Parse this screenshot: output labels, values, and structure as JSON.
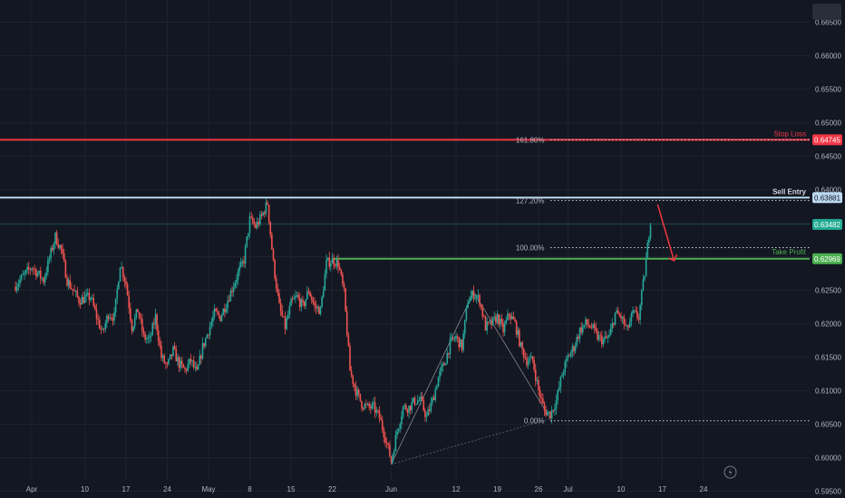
{
  "chart_data": {
    "type": "candlestick",
    "symbol_context": "FX pair price chart",
    "title": "",
    "xlabel": "",
    "ylabel": "",
    "ylim": [
      0.59418,
      0.66818
    ],
    "y_ticks": [
      "0.66500",
      "0.66000",
      "0.65500",
      "0.65000",
      "0.64500",
      "0.64000",
      "0.63500",
      "0.63000",
      "0.62500",
      "0.62000",
      "0.61500",
      "0.61000",
      "0.60500",
      "0.60000",
      "0.59500"
    ],
    "x_ticks": [
      {
        "label": "Apr",
        "day": 0
      },
      {
        "label": "10",
        "day": 9
      },
      {
        "label": "17",
        "day": 16
      },
      {
        "label": "24",
        "day": 23
      },
      {
        "label": "May",
        "day": 30
      },
      {
        "label": "8",
        "day": 37
      },
      {
        "label": "15",
        "day": 44
      },
      {
        "label": "22",
        "day": 51
      },
      {
        "label": "Jun",
        "day": 61
      },
      {
        "label": "12",
        "day": 72
      },
      {
        "label": "19",
        "day": 79
      },
      {
        "label": "26",
        "day": 86
      },
      {
        "label": "Jul",
        "day": 91
      },
      {
        "label": "10",
        "day": 100
      },
      {
        "label": "17",
        "day": 107
      },
      {
        "label": "24",
        "day": 114
      }
    ],
    "x_range_days": [
      -3,
      117.5
    ],
    "series_path": [
      [
        -3,
        0.6255
      ],
      [
        0,
        0.6285
      ],
      [
        2,
        0.6265
      ],
      [
        4,
        0.633
      ],
      [
        5,
        0.631
      ],
      [
        6,
        0.6265
      ],
      [
        8,
        0.6235
      ],
      [
        10,
        0.624
      ],
      [
        11,
        0.621
      ],
      [
        12,
        0.6185
      ],
      [
        13,
        0.6215
      ],
      [
        14,
        0.621
      ],
      [
        15,
        0.629
      ],
      [
        16,
        0.626
      ],
      [
        17,
        0.6195
      ],
      [
        18,
        0.622
      ],
      [
        19,
        0.618
      ],
      [
        20,
        0.6175
      ],
      [
        21,
        0.621
      ],
      [
        22,
        0.615
      ],
      [
        23,
        0.6135
      ],
      [
        24,
        0.616
      ],
      [
        25,
        0.614
      ],
      [
        26,
        0.613
      ],
      [
        27,
        0.6145
      ],
      [
        28,
        0.6125
      ],
      [
        29,
        0.6165
      ],
      [
        30,
        0.619
      ],
      [
        31,
        0.6215
      ],
      [
        32,
        0.621
      ],
      [
        33,
        0.623
      ],
      [
        35,
        0.6275
      ],
      [
        36,
        0.6295
      ],
      [
        37,
        0.6355
      ],
      [
        38,
        0.6345
      ],
      [
        39,
        0.636
      ],
      [
        40,
        0.638
      ],
      [
        41,
        0.629
      ],
      [
        42,
        0.6225
      ],
      [
        43,
        0.6195
      ],
      [
        44,
        0.623
      ],
      [
        45,
        0.624
      ],
      [
        46,
        0.6225
      ],
      [
        47,
        0.625
      ],
      [
        48,
        0.6225
      ],
      [
        49,
        0.622
      ],
      [
        50,
        0.629
      ],
      [
        51,
        0.6295
      ],
      [
        52,
        0.629
      ],
      [
        53,
        0.6245
      ],
      [
        54,
        0.613
      ],
      [
        55,
        0.61
      ],
      [
        56,
        0.608
      ],
      [
        57,
        0.6075
      ],
      [
        58,
        0.6075
      ],
      [
        59,
        0.606
      ],
      [
        60,
        0.603
      ],
      [
        61,
        0.5995
      ],
      [
        62,
        0.604
      ],
      [
        63,
        0.6075
      ],
      [
        64,
        0.6075
      ],
      [
        65,
        0.6085
      ],
      [
        66,
        0.6085
      ],
      [
        67,
        0.606
      ],
      [
        68,
        0.6085
      ],
      [
        69,
        0.612
      ],
      [
        70,
        0.614
      ],
      [
        71,
        0.617
      ],
      [
        72,
        0.618
      ],
      [
        73,
        0.6165
      ],
      [
        74,
        0.6235
      ],
      [
        75,
        0.6245
      ],
      [
        76,
        0.6235
      ],
      [
        77,
        0.6195
      ],
      [
        78,
        0.62
      ],
      [
        79,
        0.621
      ],
      [
        80,
        0.619
      ],
      [
        81,
        0.6215
      ],
      [
        82,
        0.62
      ],
      [
        83,
        0.6165
      ],
      [
        84,
        0.6145
      ],
      [
        85,
        0.6145
      ],
      [
        86,
        0.61
      ],
      [
        87,
        0.607
      ],
      [
        88,
        0.6065
      ],
      [
        89,
        0.6085
      ],
      [
        90,
        0.6125
      ],
      [
        91,
        0.615
      ],
      [
        92,
        0.6165
      ],
      [
        93,
        0.619
      ],
      [
        94,
        0.62
      ],
      [
        95,
        0.6195
      ],
      [
        96,
        0.618
      ],
      [
        97,
        0.6175
      ],
      [
        98,
        0.618
      ],
      [
        99,
        0.6215
      ],
      [
        100,
        0.621
      ],
      [
        101,
        0.619
      ],
      [
        102,
        0.6215
      ],
      [
        103,
        0.621
      ],
      [
        104,
        0.6275
      ],
      [
        105,
        0.6355
      ]
    ],
    "last_price": 0.63482,
    "levels": [
      {
        "name": "Stop Loss",
        "value": 0.64745,
        "price_label": "0.64745",
        "color": "#f23645"
      },
      {
        "name": "Sell Entry",
        "value": 0.63881,
        "price_label": "0.63881",
        "color": "#bbd9f0"
      },
      {
        "name": "Take Profit",
        "value": 0.62969,
        "price_label": "0.62969",
        "color": "#4caf50"
      }
    ],
    "last_price_label": "0.63482",
    "fib_levels": [
      {
        "label": "161.80%",
        "value": 0.64745
      },
      {
        "label": "127.20%",
        "value": 0.6384
      },
      {
        "label": "100.00%",
        "value": 0.63135
      },
      {
        "label": "0.00%",
        "value": 0.6055
      }
    ],
    "pattern_path": [
      [
        61,
        0.599
      ],
      [
        75,
        0.6247
      ],
      [
        88,
        0.6058
      ]
    ],
    "colors": {
      "up": "#26a69a",
      "down": "#ef5350",
      "background": "#131722",
      "axis_text": "#b2b5be",
      "grid": "#1e222d",
      "fib_dots": "#d1d4dc",
      "arrow": "#f23645",
      "last_price_bg": "#22ab94"
    }
  }
}
